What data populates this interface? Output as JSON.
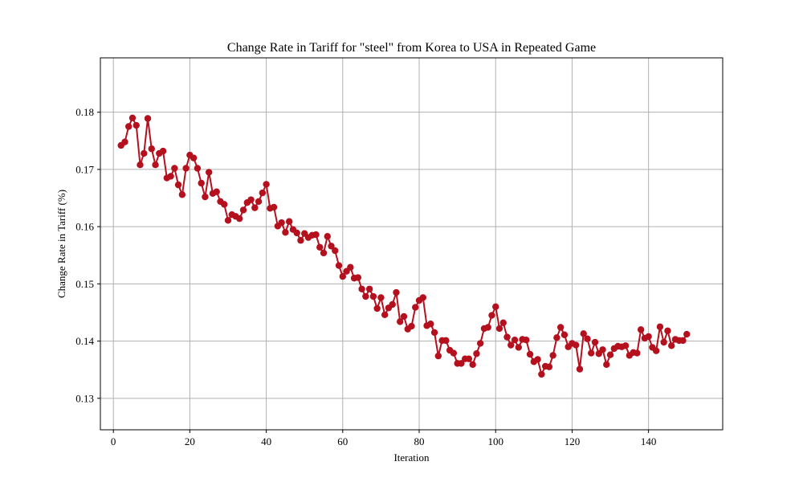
{
  "chart_data": {
    "type": "line",
    "title": "Change Rate in Tariff for \"steel\" from Korea to USA in Repeated Game",
    "xlabel": "Iteration",
    "ylabel": "Change Rate in Tariff (%)",
    "xlim": [
      -3.4,
      159.4
    ],
    "ylim": [
      0.1245,
      0.1895
    ],
    "xticks": [
      0,
      20,
      40,
      60,
      80,
      100,
      120,
      140
    ],
    "xtick_labels": [
      "0",
      "20",
      "40",
      "60",
      "80",
      "100",
      "120",
      "140"
    ],
    "yticks": [
      0.13,
      0.14,
      0.15,
      0.16,
      0.17,
      0.18
    ],
    "ytick_labels": [
      "0.13",
      "0.14",
      "0.15",
      "0.16",
      "0.17",
      "0.18"
    ],
    "grid": true,
    "legend": "none",
    "series": [
      {
        "color": "#b5101e",
        "marker": "circle",
        "x": [
          2,
          3,
          4,
          5,
          6,
          7,
          8,
          9,
          10,
          11,
          12,
          13,
          14,
          15,
          16,
          17,
          18,
          19,
          20,
          21,
          22,
          23,
          24,
          25,
          26,
          27,
          28,
          29,
          30,
          31,
          32,
          33,
          34,
          35,
          36,
          37,
          38,
          39,
          40,
          41,
          42,
          43,
          44,
          45,
          46,
          47,
          48,
          49,
          50,
          51,
          52,
          53,
          54,
          55,
          56,
          57,
          58,
          59,
          60,
          61,
          62,
          63,
          64,
          65,
          66,
          67,
          68,
          69,
          70,
          71,
          72,
          73,
          74,
          75,
          76,
          77,
          78,
          79,
          80,
          81,
          82,
          83,
          84,
          85,
          86,
          87,
          88,
          89,
          90,
          91,
          92,
          93,
          94,
          95,
          96,
          97,
          98,
          99,
          100,
          101,
          102,
          103,
          104,
          105,
          106,
          107,
          108,
          109,
          110,
          111,
          112,
          113,
          114,
          115,
          116,
          117,
          118,
          119,
          120,
          121,
          122,
          123,
          124,
          125,
          126,
          127,
          128,
          129,
          130,
          131,
          132,
          133,
          134,
          135,
          136,
          137,
          138,
          139,
          140,
          141,
          142,
          143,
          144,
          145,
          146,
          147,
          148,
          149,
          150
        ],
        "y": [
          0.1742,
          0.1748,
          0.1775,
          0.179,
          0.1777,
          0.1708,
          0.1728,
          0.1789,
          0.1736,
          0.1708,
          0.1728,
          0.1732,
          0.1685,
          0.1688,
          0.1702,
          0.1673,
          0.1656,
          0.1702,
          0.1725,
          0.172,
          0.1702,
          0.1676,
          0.1652,
          0.1695,
          0.1658,
          0.1661,
          0.1644,
          0.1639,
          0.1611,
          0.1621,
          0.1618,
          0.1614,
          0.1629,
          0.1642,
          0.1647,
          0.1633,
          0.1644,
          0.1659,
          0.1674,
          0.1632,
          0.1634,
          0.1601,
          0.1607,
          0.159,
          0.1609,
          0.1595,
          0.1589,
          0.1576,
          0.1588,
          0.1581,
          0.1585,
          0.1586,
          0.1564,
          0.1554,
          0.1583,
          0.1566,
          0.1558,
          0.1532,
          0.1513,
          0.1522,
          0.1529,
          0.151,
          0.1511,
          0.1491,
          0.1478,
          0.1491,
          0.1478,
          0.1457,
          0.1476,
          0.1446,
          0.1458,
          0.1464,
          0.1485,
          0.1434,
          0.1443,
          0.1421,
          0.1426,
          0.1459,
          0.1471,
          0.1476,
          0.1427,
          0.143,
          0.1415,
          0.1374,
          0.1401,
          0.1401,
          0.1384,
          0.1379,
          0.1361,
          0.1361,
          0.1369,
          0.1369,
          0.1359,
          0.1378,
          0.1396,
          0.1422,
          0.1424,
          0.1445,
          0.146,
          0.1422,
          0.1432,
          0.1407,
          0.1393,
          0.1402,
          0.1389,
          0.1403,
          0.1402,
          0.1377,
          0.1364,
          0.1368,
          0.1342,
          0.1356,
          0.1355,
          0.1375,
          0.1406,
          0.1424,
          0.1411,
          0.139,
          0.1396,
          0.1393,
          0.1351,
          0.1413,
          0.1404,
          0.1379,
          0.1398,
          0.1378,
          0.1385,
          0.1359,
          0.1376,
          0.1387,
          0.1391,
          0.139,
          0.1392,
          0.1375,
          0.138,
          0.1379,
          0.142,
          0.1405,
          0.1408,
          0.1389,
          0.1383,
          0.1425,
          0.1398,
          0.1418,
          0.1392,
          0.1403,
          0.1401,
          0.1401,
          0.1412
        ]
      }
    ]
  }
}
